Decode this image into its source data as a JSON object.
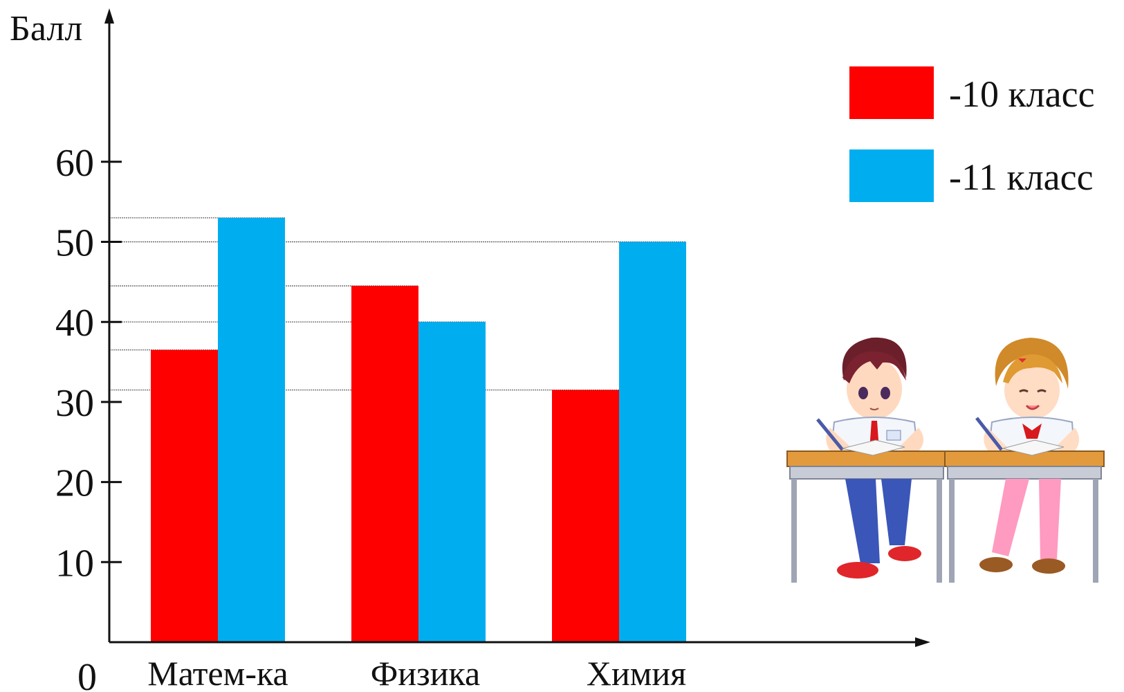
{
  "chart_data": {
    "type": "bar",
    "ylabel": "Балл",
    "origin_label": "0",
    "categories": [
      "Матем-ка",
      "Физика",
      "Химия"
    ],
    "series": [
      {
        "name": "-10 класс",
        "color": "#ff0000",
        "values": [
          36.5,
          44.5,
          31.5
        ]
      },
      {
        "name": "-11 класс",
        "color": "#00aeef",
        "values": [
          53,
          40,
          50
        ]
      }
    ],
    "yticks": [
      10,
      20,
      30,
      40,
      50,
      60
    ],
    "ylim": [
      0,
      70
    ],
    "grid": false,
    "legend_position": "top-right"
  },
  "illustration": {
    "icons": [
      "boy-student-at-desk-icon",
      "girl-student-at-desk-icon"
    ]
  }
}
